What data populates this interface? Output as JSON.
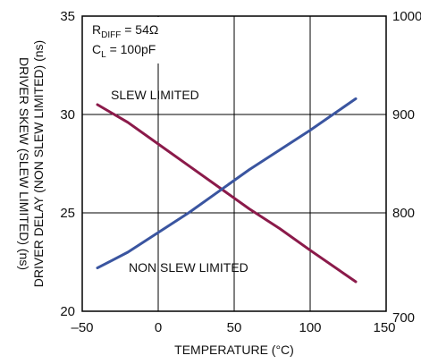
{
  "chart_data": {
    "type": "line",
    "xlabel": "TEMPERATURE (°C)",
    "ylabel_left_outer": "DRIVER SKEW (SLEW LIMITED) (ns)",
    "ylabel_left_inner": "DRIVER DELAY (NON SLEW LIMITED) (ns)",
    "xlim": [
      -50,
      150
    ],
    "ylim_left": [
      20,
      35
    ],
    "ylim_right": [
      700,
      1000
    ],
    "x_ticks": [
      "–50",
      "0",
      "50",
      "100",
      "150"
    ],
    "y_ticks_left": [
      "20",
      "25",
      "30",
      "35"
    ],
    "y_ticks_right": [
      "700",
      "800",
      "900",
      "1000"
    ],
    "grid": true,
    "annotation": {
      "line1_main": "R",
      "line1_sub": "DIFF",
      "line1_rest": " = 54Ω",
      "line2_main": "C",
      "line2_sub": "L",
      "line2_rest": " = 100pF"
    },
    "series": [
      {
        "name": "SLEW LIMITED",
        "color": "#8B1A4A",
        "x": [
          -40,
          -20,
          0,
          20,
          40,
          60,
          80,
          100,
          130
        ],
        "y": [
          30.5,
          29.6,
          28.5,
          27.4,
          26.3,
          25.2,
          24.2,
          23.1,
          21.5
        ]
      },
      {
        "name": "NON SLEW LIMITED",
        "color": "#3A55A0",
        "x": [
          -40,
          -20,
          0,
          20,
          40,
          60,
          80,
          100,
          130
        ],
        "y": [
          22.2,
          23.0,
          24.0,
          25.0,
          26.1,
          27.2,
          28.2,
          29.2,
          30.8
        ]
      }
    ]
  }
}
